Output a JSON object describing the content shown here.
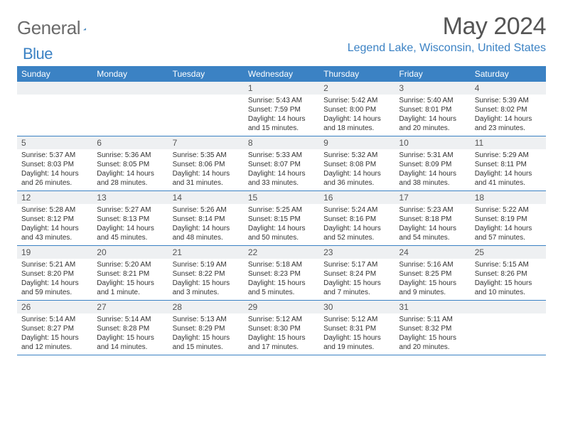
{
  "brand": {
    "part1": "General",
    "part2": "Blue"
  },
  "title": "May 2024",
  "location": "Legend Lake, Wisconsin, United States",
  "colors": {
    "accent": "#3b82c4",
    "header_text": "#555555",
    "body_text": "#333333",
    "daynum_bg": "#eef0f2",
    "page_bg": "#ffffff"
  },
  "weekdays": [
    "Sunday",
    "Monday",
    "Tuesday",
    "Wednesday",
    "Thursday",
    "Friday",
    "Saturday"
  ],
  "weeks": [
    [
      {
        "n": "",
        "sr": "",
        "ss": "",
        "dl": ""
      },
      {
        "n": "",
        "sr": "",
        "ss": "",
        "dl": ""
      },
      {
        "n": "",
        "sr": "",
        "ss": "",
        "dl": ""
      },
      {
        "n": "1",
        "sr": "Sunrise: 5:43 AM",
        "ss": "Sunset: 7:59 PM",
        "dl": "Daylight: 14 hours and 15 minutes."
      },
      {
        "n": "2",
        "sr": "Sunrise: 5:42 AM",
        "ss": "Sunset: 8:00 PM",
        "dl": "Daylight: 14 hours and 18 minutes."
      },
      {
        "n": "3",
        "sr": "Sunrise: 5:40 AM",
        "ss": "Sunset: 8:01 PM",
        "dl": "Daylight: 14 hours and 20 minutes."
      },
      {
        "n": "4",
        "sr": "Sunrise: 5:39 AM",
        "ss": "Sunset: 8:02 PM",
        "dl": "Daylight: 14 hours and 23 minutes."
      }
    ],
    [
      {
        "n": "5",
        "sr": "Sunrise: 5:37 AM",
        "ss": "Sunset: 8:03 PM",
        "dl": "Daylight: 14 hours and 26 minutes."
      },
      {
        "n": "6",
        "sr": "Sunrise: 5:36 AM",
        "ss": "Sunset: 8:05 PM",
        "dl": "Daylight: 14 hours and 28 minutes."
      },
      {
        "n": "7",
        "sr": "Sunrise: 5:35 AM",
        "ss": "Sunset: 8:06 PM",
        "dl": "Daylight: 14 hours and 31 minutes."
      },
      {
        "n": "8",
        "sr": "Sunrise: 5:33 AM",
        "ss": "Sunset: 8:07 PM",
        "dl": "Daylight: 14 hours and 33 minutes."
      },
      {
        "n": "9",
        "sr": "Sunrise: 5:32 AM",
        "ss": "Sunset: 8:08 PM",
        "dl": "Daylight: 14 hours and 36 minutes."
      },
      {
        "n": "10",
        "sr": "Sunrise: 5:31 AM",
        "ss": "Sunset: 8:09 PM",
        "dl": "Daylight: 14 hours and 38 minutes."
      },
      {
        "n": "11",
        "sr": "Sunrise: 5:29 AM",
        "ss": "Sunset: 8:11 PM",
        "dl": "Daylight: 14 hours and 41 minutes."
      }
    ],
    [
      {
        "n": "12",
        "sr": "Sunrise: 5:28 AM",
        "ss": "Sunset: 8:12 PM",
        "dl": "Daylight: 14 hours and 43 minutes."
      },
      {
        "n": "13",
        "sr": "Sunrise: 5:27 AM",
        "ss": "Sunset: 8:13 PM",
        "dl": "Daylight: 14 hours and 45 minutes."
      },
      {
        "n": "14",
        "sr": "Sunrise: 5:26 AM",
        "ss": "Sunset: 8:14 PM",
        "dl": "Daylight: 14 hours and 48 minutes."
      },
      {
        "n": "15",
        "sr": "Sunrise: 5:25 AM",
        "ss": "Sunset: 8:15 PM",
        "dl": "Daylight: 14 hours and 50 minutes."
      },
      {
        "n": "16",
        "sr": "Sunrise: 5:24 AM",
        "ss": "Sunset: 8:16 PM",
        "dl": "Daylight: 14 hours and 52 minutes."
      },
      {
        "n": "17",
        "sr": "Sunrise: 5:23 AM",
        "ss": "Sunset: 8:18 PM",
        "dl": "Daylight: 14 hours and 54 minutes."
      },
      {
        "n": "18",
        "sr": "Sunrise: 5:22 AM",
        "ss": "Sunset: 8:19 PM",
        "dl": "Daylight: 14 hours and 57 minutes."
      }
    ],
    [
      {
        "n": "19",
        "sr": "Sunrise: 5:21 AM",
        "ss": "Sunset: 8:20 PM",
        "dl": "Daylight: 14 hours and 59 minutes."
      },
      {
        "n": "20",
        "sr": "Sunrise: 5:20 AM",
        "ss": "Sunset: 8:21 PM",
        "dl": "Daylight: 15 hours and 1 minute."
      },
      {
        "n": "21",
        "sr": "Sunrise: 5:19 AM",
        "ss": "Sunset: 8:22 PM",
        "dl": "Daylight: 15 hours and 3 minutes."
      },
      {
        "n": "22",
        "sr": "Sunrise: 5:18 AM",
        "ss": "Sunset: 8:23 PM",
        "dl": "Daylight: 15 hours and 5 minutes."
      },
      {
        "n": "23",
        "sr": "Sunrise: 5:17 AM",
        "ss": "Sunset: 8:24 PM",
        "dl": "Daylight: 15 hours and 7 minutes."
      },
      {
        "n": "24",
        "sr": "Sunrise: 5:16 AM",
        "ss": "Sunset: 8:25 PM",
        "dl": "Daylight: 15 hours and 9 minutes."
      },
      {
        "n": "25",
        "sr": "Sunrise: 5:15 AM",
        "ss": "Sunset: 8:26 PM",
        "dl": "Daylight: 15 hours and 10 minutes."
      }
    ],
    [
      {
        "n": "26",
        "sr": "Sunrise: 5:14 AM",
        "ss": "Sunset: 8:27 PM",
        "dl": "Daylight: 15 hours and 12 minutes."
      },
      {
        "n": "27",
        "sr": "Sunrise: 5:14 AM",
        "ss": "Sunset: 8:28 PM",
        "dl": "Daylight: 15 hours and 14 minutes."
      },
      {
        "n": "28",
        "sr": "Sunrise: 5:13 AM",
        "ss": "Sunset: 8:29 PM",
        "dl": "Daylight: 15 hours and 15 minutes."
      },
      {
        "n": "29",
        "sr": "Sunrise: 5:12 AM",
        "ss": "Sunset: 8:30 PM",
        "dl": "Daylight: 15 hours and 17 minutes."
      },
      {
        "n": "30",
        "sr": "Sunrise: 5:12 AM",
        "ss": "Sunset: 8:31 PM",
        "dl": "Daylight: 15 hours and 19 minutes."
      },
      {
        "n": "31",
        "sr": "Sunrise: 5:11 AM",
        "ss": "Sunset: 8:32 PM",
        "dl": "Daylight: 15 hours and 20 minutes."
      },
      {
        "n": "",
        "sr": "",
        "ss": "",
        "dl": ""
      }
    ]
  ]
}
